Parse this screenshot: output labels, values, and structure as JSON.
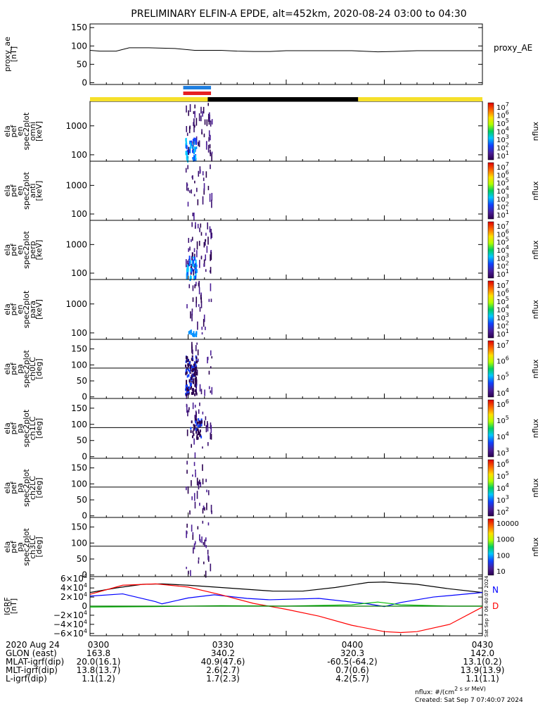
{
  "title": "PRELIMINARY ELFIN-A EPDE, alt=452km, 2020-08-24 03:00 to 04:30",
  "panels": [
    {
      "key": "ae",
      "ylabel": [
        "proxy_ae",
        "[nT]"
      ],
      "legend": "proxy_AE",
      "yticks": [
        "150",
        "100",
        "50",
        "0"
      ],
      "ytick_values": [
        150,
        100,
        50,
        0
      ],
      "ylim": [
        -5,
        160
      ],
      "series": [
        [
          0,
          88
        ],
        [
          3,
          86
        ],
        [
          8,
          86
        ],
        [
          12,
          95
        ],
        [
          18,
          95
        ],
        [
          26,
          93
        ],
        [
          32,
          88
        ],
        [
          40,
          88
        ],
        [
          45,
          86
        ],
        [
          50,
          85
        ],
        [
          55,
          85
        ],
        [
          60,
          87
        ],
        [
          70,
          87
        ],
        [
          80,
          87
        ],
        [
          88,
          84
        ],
        [
          93,
          85
        ],
        [
          100,
          87
        ],
        [
          110,
          87
        ],
        [
          120,
          87
        ]
      ]
    },
    {
      "key": "omni",
      "ylabel": [
        "ela",
        "pef",
        "en",
        "spec2plot",
        "omni",
        "[keV]"
      ],
      "yticks": [
        "1000",
        "100"
      ],
      "yscale": "log",
      "ylim": [
        60,
        7000
      ],
      "ytick_values": [
        1000,
        100
      ],
      "cbar_ticks": [
        "10^7",
        "10^6",
        "10^5",
        "10^4",
        "10^3",
        "10^2",
        "10^1"
      ],
      "cbar_label": "nflux"
    },
    {
      "key": "anti",
      "ylabel": [
        "ela",
        "pef",
        "en",
        "spec2plot",
        "anti",
        "[keV]"
      ],
      "yticks": [
        "1000",
        "100"
      ],
      "yscale": "log",
      "ylim": [
        60,
        7000
      ],
      "ytick_values": [
        1000,
        100
      ],
      "cbar_ticks": [
        "10^7",
        "10^6",
        "10^5",
        "10^4",
        "10^3",
        "10^2",
        "10^1"
      ],
      "cbar_label": "nflux"
    },
    {
      "key": "perp",
      "ylabel": [
        "ela",
        "pef",
        "en",
        "spec2plot",
        "perp",
        "[keV]"
      ],
      "yticks": [
        "1000",
        "100"
      ],
      "yscale": "log",
      "ylim": [
        60,
        7000
      ],
      "ytick_values": [
        1000,
        100
      ],
      "cbar_ticks": [
        "10^7",
        "10^6",
        "10^5",
        "10^4",
        "10^3",
        "10^2",
        "10^1"
      ],
      "cbar_label": "nflux"
    },
    {
      "key": "para",
      "ylabel": [
        "ela",
        "pef",
        "en",
        "spec2plot",
        "para",
        "[keV]"
      ],
      "yticks": [
        "1000",
        "100"
      ],
      "yscale": "log",
      "ylim": [
        60,
        7000
      ],
      "ytick_values": [
        1000,
        100
      ],
      "cbar_ticks": [
        "10^7",
        "10^6",
        "10^5",
        "10^4",
        "10^3",
        "10^2",
        "10^1"
      ],
      "cbar_label": "nflux"
    },
    {
      "key": "ch0LC",
      "ylabel": [
        "ela",
        "pef",
        "pa",
        "spec2plot",
        "ch0LC",
        "[deg]"
      ],
      "yticks": [
        "150",
        "100",
        "50",
        "0"
      ],
      "ytick_values": [
        150,
        100,
        50,
        0
      ],
      "ylim": [
        -5,
        180
      ],
      "cbar_ticks": [
        "10^7",
        "10^6",
        "10^5",
        "10^4"
      ],
      "cbar_label": "nflux"
    },
    {
      "key": "ch1LC",
      "ylabel": [
        "ela",
        "pef",
        "pa",
        "spec2plot",
        "ch1LC",
        "[deg]"
      ],
      "yticks": [
        "150",
        "100",
        "50",
        "0"
      ],
      "ytick_values": [
        150,
        100,
        50,
        0
      ],
      "ylim": [
        -5,
        180
      ],
      "cbar_ticks": [
        "10^6",
        "10^5",
        "10^4",
        "10^3"
      ],
      "cbar_label": "nflux"
    },
    {
      "key": "ch2LC",
      "ylabel": [
        "ela",
        "pef",
        "pa",
        "spec2plot",
        "ch2LC",
        "[deg]"
      ],
      "yticks": [
        "150",
        "100",
        "50",
        "0"
      ],
      "ytick_values": [
        150,
        100,
        50,
        0
      ],
      "ylim": [
        -5,
        180
      ],
      "cbar_ticks": [
        "10^6",
        "10^5",
        "10^4",
        "10^3",
        "10^2"
      ],
      "cbar_label": "nflux"
    },
    {
      "key": "ch3LC",
      "ylabel": [
        "ela",
        "pef",
        "pa",
        "spec2plot",
        "ch3LC",
        "[deg]"
      ],
      "yticks": [
        "150",
        "100",
        "50",
        "0"
      ],
      "ytick_values": [
        150,
        100,
        50,
        0
      ],
      "ylim": [
        -5,
        180
      ],
      "cbar_ticks": [
        "10000",
        "1000",
        "100",
        "10"
      ],
      "cbar_label": "nflux"
    },
    {
      "key": "igrf",
      "ylabel": [
        "IGRF",
        "[nT]"
      ],
      "yticks": [
        "6×10^4",
        "4×10^4",
        "2×10^4",
        "0",
        "−2×10^4",
        "−4×10^4",
        "−6×10^4"
      ],
      "ytick_values": [
        60000,
        40000,
        20000,
        0,
        -20000,
        -40000,
        -60000
      ],
      "ylim": [
        -65000,
        65000
      ],
      "legend": [
        {
          "name": "N",
          "color": "#0000ff"
        },
        {
          "name": "D",
          "color": "#ff0000"
        }
      ],
      "series": [
        {
          "color": "#000000",
          "points": [
            [
              0,
              30000
            ],
            [
              8,
              40000
            ],
            [
              16,
              48000
            ],
            [
              22,
              49000
            ],
            [
              30,
              46000
            ],
            [
              40,
              41000
            ],
            [
              50,
              36000
            ],
            [
              56,
              33000
            ],
            [
              65,
              33000
            ],
            [
              75,
              41000
            ],
            [
              85,
              52000
            ],
            [
              90,
              53000
            ],
            [
              100,
              48000
            ],
            [
              110,
              38000
            ],
            [
              120,
              30000
            ]
          ]
        },
        {
          "color": "#0000ff",
          "points": [
            [
              0,
              22000
            ],
            [
              10,
              27000
            ],
            [
              20,
              10000
            ],
            [
              22,
              5000
            ],
            [
              30,
              18000
            ],
            [
              38,
              25000
            ],
            [
              48,
              17000
            ],
            [
              55,
              14000
            ],
            [
              70,
              17000
            ],
            [
              85,
              5000
            ],
            [
              90,
              -1000
            ],
            [
              95,
              8000
            ],
            [
              105,
              20000
            ],
            [
              120,
              30000
            ]
          ]
        },
        {
          "color": "#ff0000",
          "points": [
            [
              0,
              26000
            ],
            [
              10,
              46000
            ],
            [
              20,
              49000
            ],
            [
              30,
              42000
            ],
            [
              40,
              25000
            ],
            [
              50,
              6000
            ],
            [
              60,
              -7000
            ],
            [
              70,
              -22000
            ],
            [
              80,
              -42000
            ],
            [
              90,
              -56000
            ],
            [
              95,
              -58000
            ],
            [
              100,
              -56000
            ],
            [
              110,
              -40000
            ],
            [
              120,
              -2000
            ]
          ]
        },
        {
          "color": "#00bb00",
          "points": [
            [
              0,
              -2000
            ],
            [
              20,
              -1000
            ],
            [
              40,
              1000
            ],
            [
              60,
              0
            ],
            [
              80,
              3000
            ],
            [
              88,
              9000
            ],
            [
              95,
              3000
            ],
            [
              110,
              0
            ],
            [
              120,
              0
            ]
          ]
        },
        {
          "color": "#007700",
          "points": [
            [
              0,
              0
            ],
            [
              40,
              0
            ],
            [
              80,
              0
            ],
            [
              120,
              0
            ]
          ]
        }
      ]
    }
  ],
  "xaxis_minutes": [
    0,
    30,
    60,
    90
  ],
  "orbit_bar": [
    {
      "from": 0,
      "to": 36,
      "color": "#f6e02a"
    },
    {
      "from": 36,
      "to": 82,
      "color": "#000000"
    },
    {
      "from": 82,
      "to": 120,
      "color": "#f6e02a"
    }
  ],
  "intervals": [
    {
      "from": 28.5,
      "to": 37,
      "color": "#1f7fe0"
    },
    {
      "from": 28.5,
      "to": 37,
      "color": "#e62020"
    }
  ],
  "side_stamp": "Sat Sep  7 06:40:07 2024",
  "footer": {
    "rows": [
      {
        "label": "2020 Aug 24",
        "values": [
          "0300",
          "0330",
          "0400",
          "0430"
        ]
      },
      {
        "label": "GLON (east)",
        "values": [
          "163.8",
          "340.2",
          "320.3",
          "142.0"
        ]
      },
      {
        "label": "MLAT-igrf(dip)",
        "values": [
          "20.0(16.1)",
          "40.9(47.6)",
          "-60.5(-64.2)",
          "13.1(0.2)"
        ]
      },
      {
        "label": "MLT-igrf(dip)",
        "values": [
          "13.8(13.7)",
          "2.6(2.7)",
          "0.7(0.6)",
          "13.9(13.9)"
        ]
      },
      {
        "label": "L-igrf(dip)",
        "values": [
          "1.1(1.2)",
          "1.7(2.3)",
          "4.2(5.7)",
          "1.1(1.1)"
        ]
      }
    ],
    "units_note": "nflux: #/(cm^2 s sr MeV)",
    "created": "Created: Sat Sep  7 07:40:07 2024"
  }
}
